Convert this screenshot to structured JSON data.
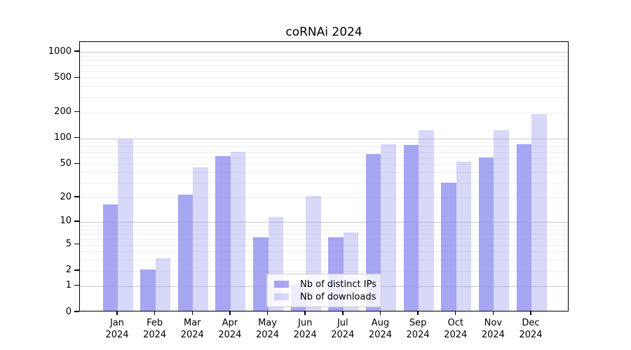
{
  "title": "coRNAi 2024",
  "colors": {
    "bar_base": "#8888ee",
    "distinct_ips_alpha": 0.75,
    "downloads_alpha": 0.33,
    "major_grid": "#c9c9c9",
    "minor_grid": "#ededed",
    "axis": "#000000",
    "legend_border": "#cccccc"
  },
  "chart_data": {
    "type": "bar",
    "title": "coRNAi 2024",
    "scale": "symlog (log1p), 0 at baseline",
    "categories": [
      "Jan",
      "Feb",
      "Mar",
      "Apr",
      "May",
      "Jun",
      "Jul",
      "Aug",
      "Sep",
      "Oct",
      "Nov",
      "Dec"
    ],
    "year_label": "2024",
    "series": [
      {
        "name": "Nb of distinct IPs",
        "values": [
          16,
          2,
          21,
          60,
          6,
          1,
          6,
          63,
          80,
          29,
          57,
          82
        ]
      },
      {
        "name": "Nb of downloads",
        "values": [
          94,
          3,
          44,
          67,
          11,
          20,
          7,
          83,
          120,
          51,
          120,
          185
        ]
      }
    ],
    "yticks": [
      0,
      1,
      2,
      5,
      10,
      20,
      50,
      100,
      200,
      500,
      1000
    ],
    "ylim": [
      0,
      1300
    ],
    "grid": true,
    "legend_position": "lower center",
    "xlabel": "",
    "ylabel": ""
  }
}
